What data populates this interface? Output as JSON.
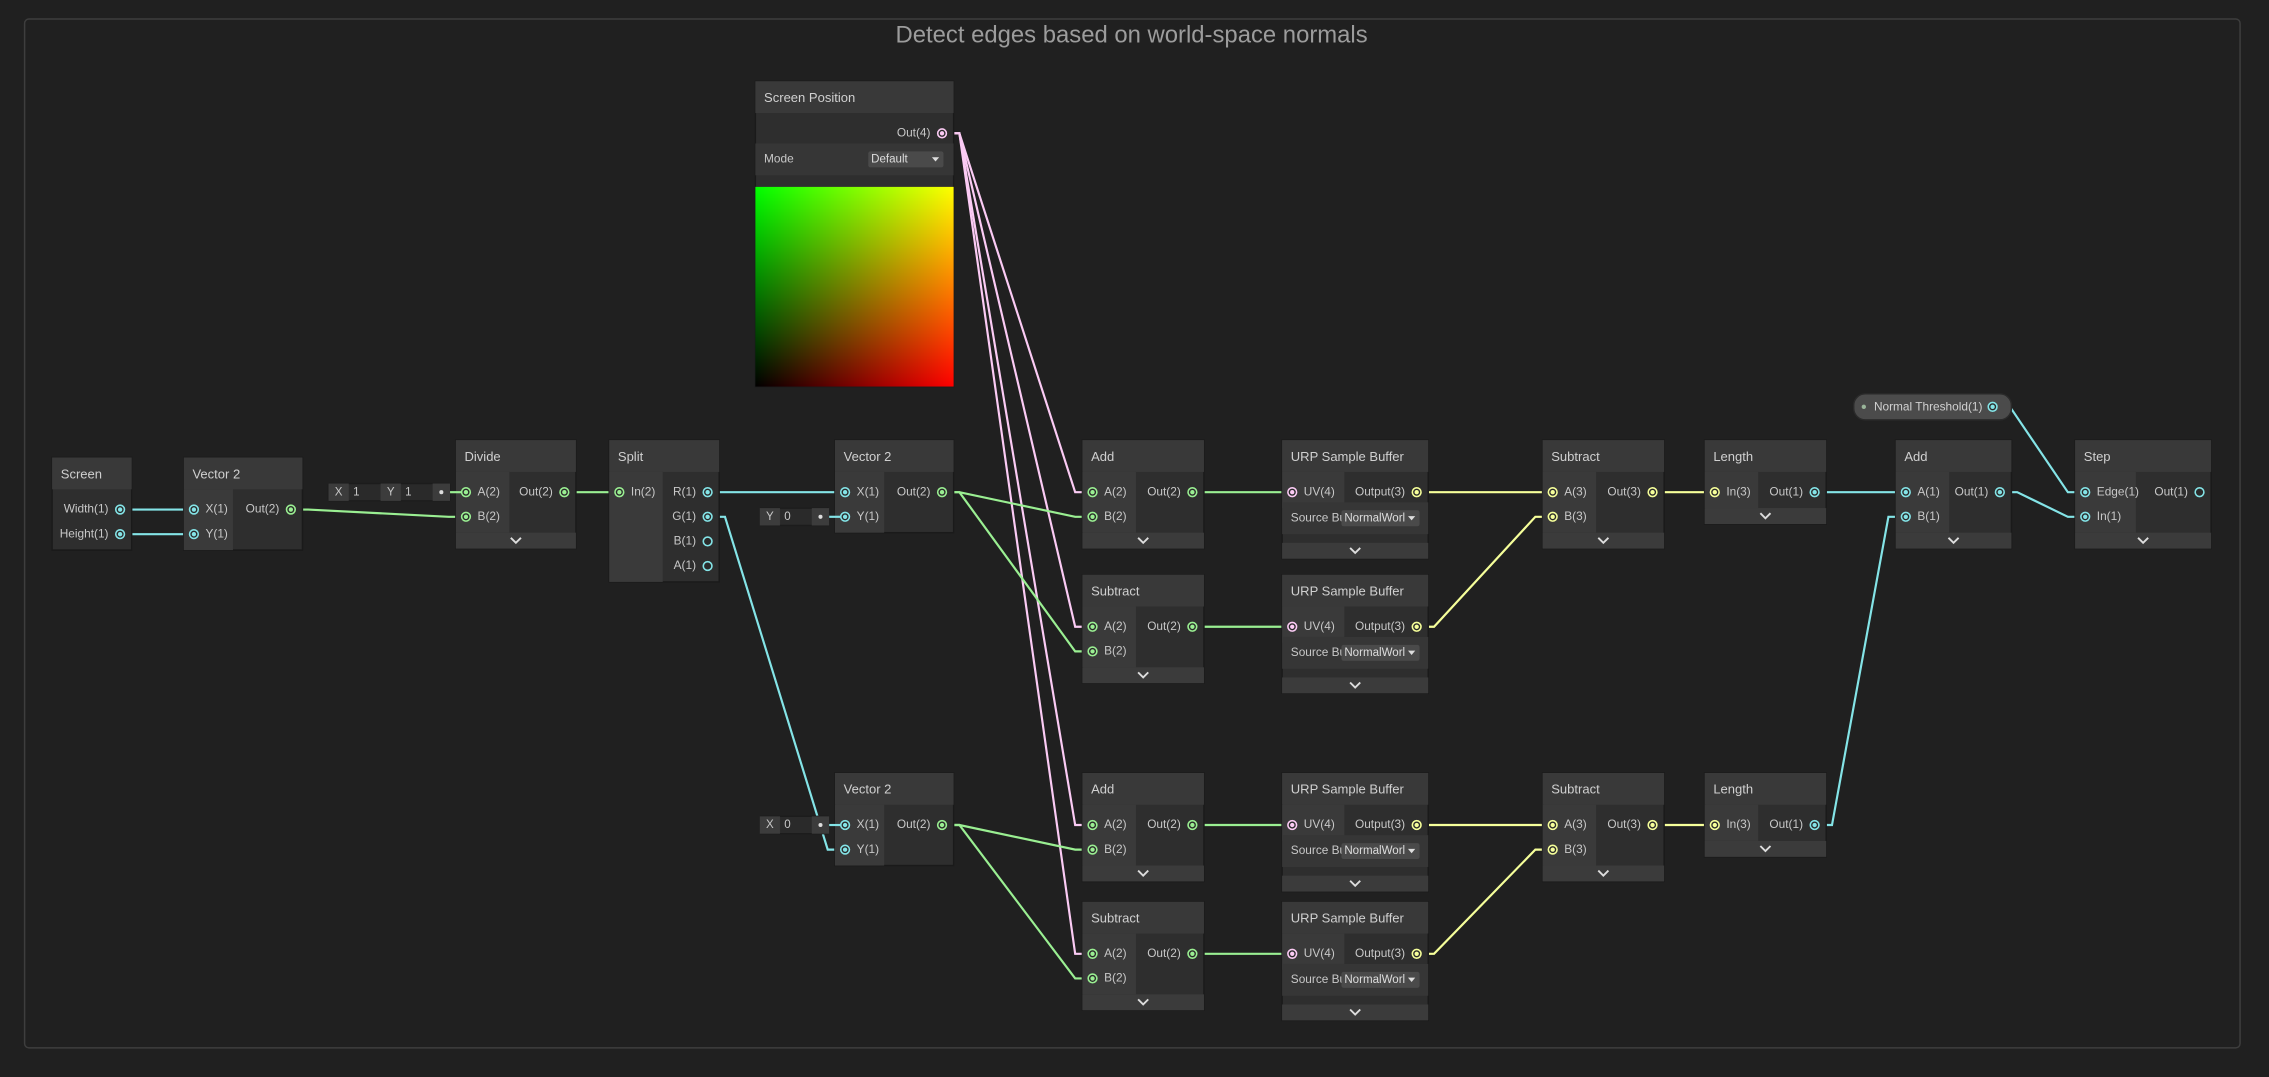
{
  "title": "Detect edges based on world-space normals",
  "nodes": [
    {
      "title": "Screen",
      "inputs": [],
      "outputs": [
        "Width(1)",
        "Height(1)"
      ]
    },
    {
      "title": "Vector 2",
      "inputs": [
        {
          "name": "X(1)"
        },
        {
          "name": "Y(1)"
        }
      ],
      "outputs": [
        "Out(2)"
      ]
    },
    {
      "title": "Divide",
      "inputs": [
        {
          "name": "A(2)",
          "field": [
            {
              "label": "X",
              "value": "1"
            },
            {
              "label": "Y",
              "value": "1"
            }
          ]
        },
        {
          "name": "B(2)"
        }
      ],
      "outputs": [
        "Out(2)"
      ]
    },
    {
      "title": "Split",
      "inputs": [
        {
          "name": "In(2)"
        }
      ],
      "outputs": [
        "R(1)",
        "G(1)",
        "B(1)",
        "A(1)"
      ]
    },
    {
      "title": "Screen Position",
      "inputs": [],
      "outputs": [
        "Out(4)"
      ],
      "controls": [
        {
          "label": "Mode",
          "value": "Default"
        }
      ]
    },
    {
      "title": "Vector 2",
      "inputs": [
        {
          "name": "X(1)"
        },
        {
          "name": "Y(1)",
          "field": [
            {
              "label": "Y",
              "value": "0"
            }
          ]
        }
      ],
      "outputs": [
        "Out(2)"
      ]
    },
    {
      "title": "Vector 2",
      "inputs": [
        {
          "name": "X(1)",
          "field": [
            {
              "label": "X",
              "value": "0"
            }
          ]
        },
        {
          "name": "Y(1)"
        }
      ],
      "outputs": [
        "Out(2)"
      ]
    },
    {
      "title": "Add",
      "inputs": [
        {
          "name": "A(2)"
        },
        {
          "name": "B(2)"
        }
      ],
      "outputs": [
        "Out(2)"
      ]
    },
    {
      "title": "Subtract",
      "inputs": [
        {
          "name": "A(2)"
        },
        {
          "name": "B(2)"
        }
      ],
      "outputs": [
        "Out(2)"
      ]
    },
    {
      "title": "Add",
      "inputs": [
        {
          "name": "A(2)"
        },
        {
          "name": "B(2)"
        }
      ],
      "outputs": [
        "Out(2)"
      ]
    },
    {
      "title": "Subtract",
      "inputs": [
        {
          "name": "A(2)"
        },
        {
          "name": "B(2)"
        }
      ],
      "outputs": [
        "Out(2)"
      ]
    },
    {
      "title": "URP Sample Buffer",
      "inputs": [
        {
          "name": "UV(4)"
        }
      ],
      "outputs": [
        "Output(3)"
      ],
      "controls": [
        {
          "label": "Source Bu",
          "value": "NormalWorl"
        }
      ]
    },
    {
      "title": "URP Sample Buffer",
      "inputs": [
        {
          "name": "UV(4)"
        }
      ],
      "outputs": [
        "Output(3)"
      ],
      "controls": [
        {
          "label": "Source Bu",
          "value": "NormalWorl"
        }
      ]
    },
    {
      "title": "URP Sample Buffer",
      "inputs": [
        {
          "name": "UV(4)"
        }
      ],
      "outputs": [
        "Output(3)"
      ],
      "controls": [
        {
          "label": "Source Bu",
          "value": "NormalWorl"
        }
      ]
    },
    {
      "title": "URP Sample Buffer",
      "inputs": [
        {
          "name": "UV(4)"
        }
      ],
      "outputs": [
        "Output(3)"
      ],
      "controls": [
        {
          "label": "Source Bu",
          "value": "NormalWorl"
        }
      ]
    },
    {
      "title": "Subtract",
      "inputs": [
        {
          "name": "A(3)"
        },
        {
          "name": "B(3)"
        }
      ],
      "outputs": [
        "Out(3)"
      ]
    },
    {
      "title": "Subtract",
      "inputs": [
        {
          "name": "A(3)"
        },
        {
          "name": "B(3)"
        }
      ],
      "outputs": [
        "Out(3)"
      ]
    },
    {
      "title": "Length",
      "inputs": [
        {
          "name": "In(3)"
        }
      ],
      "outputs": [
        "Out(1)"
      ]
    },
    {
      "title": "Length",
      "inputs": [
        {
          "name": "In(3)"
        }
      ],
      "outputs": [
        "Out(1)"
      ]
    },
    {
      "title": "Add",
      "inputs": [
        {
          "name": "A(1)"
        },
        {
          "name": "B(1)"
        }
      ],
      "outputs": [
        "Out(1)"
      ]
    },
    {
      "title": "Step",
      "inputs": [
        {
          "name": "Edge(1)"
        },
        {
          "name": "In(1)"
        }
      ],
      "outputs": [
        "Out(1)"
      ]
    }
  ],
  "property": "Normal Threshold(1)"
}
